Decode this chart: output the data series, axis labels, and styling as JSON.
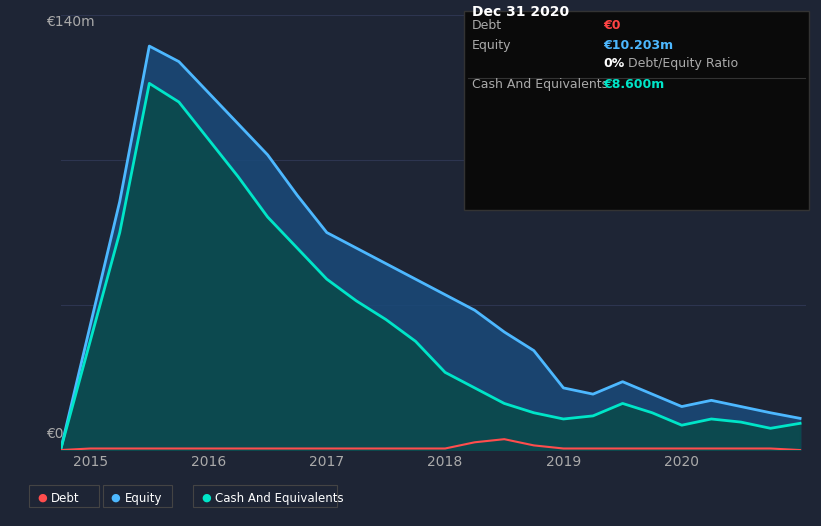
{
  "bg_color": "#1e2535",
  "plot_bg_color": "#1e2535",
  "grid_color": "#2d3550",
  "title_text": "Dec 31 2020",
  "equity_color": "#4db8ff",
  "cash_color": "#00e5c8",
  "debt_color": "#ff4d4d",
  "equity_fill": "#1a4a7a",
  "cash_fill": "#0a4a4a",
  "ylabel_text": "€140m",
  "y0_text": "€0",
  "ylim": [
    0,
    140
  ],
  "years_x": [
    2014.75,
    2015.0,
    2015.25,
    2015.5,
    2015.75,
    2016.0,
    2016.25,
    2016.5,
    2016.75,
    2017.0,
    2017.25,
    2017.5,
    2017.75,
    2018.0,
    2018.25,
    2018.5,
    2018.75,
    2019.0,
    2019.25,
    2019.5,
    2019.75,
    2020.0,
    2020.25,
    2020.5,
    2020.75,
    2021.0
  ],
  "equity": [
    0,
    40,
    80,
    130,
    125,
    115,
    105,
    95,
    82,
    70,
    65,
    60,
    55,
    50,
    45,
    38,
    32,
    20,
    18,
    22,
    18,
    14,
    16,
    14,
    12,
    10.2
  ],
  "cash": [
    0,
    35,
    70,
    118,
    112,
    100,
    88,
    75,
    65,
    55,
    48,
    42,
    35,
    25,
    20,
    15,
    12,
    10,
    11,
    15,
    12,
    8,
    10,
    9,
    7,
    8.6
  ],
  "debt": [
    0,
    0.5,
    0.5,
    0.5,
    0.5,
    0.5,
    0.5,
    0.5,
    0.5,
    0.5,
    0.5,
    0.5,
    0.5,
    0.5,
    2.5,
    3.5,
    1.5,
    0.5,
    0.5,
    0.5,
    0.5,
    0.5,
    0.5,
    0.5,
    0.5,
    0
  ],
  "xticks": [
    2015,
    2016,
    2017,
    2018,
    2019,
    2020
  ],
  "info_box": {
    "title": "Dec 31 2020",
    "debt_label": "Debt",
    "debt_value": "€0",
    "equity_label": "Equity",
    "equity_value": "€10.203m",
    "ratio_text": "0% Debt/Equity Ratio",
    "cash_label": "Cash And Equivalents",
    "cash_value": "€8.600m"
  },
  "legend_items": [
    "Debt",
    "Equity",
    "Cash And Equivalents"
  ]
}
